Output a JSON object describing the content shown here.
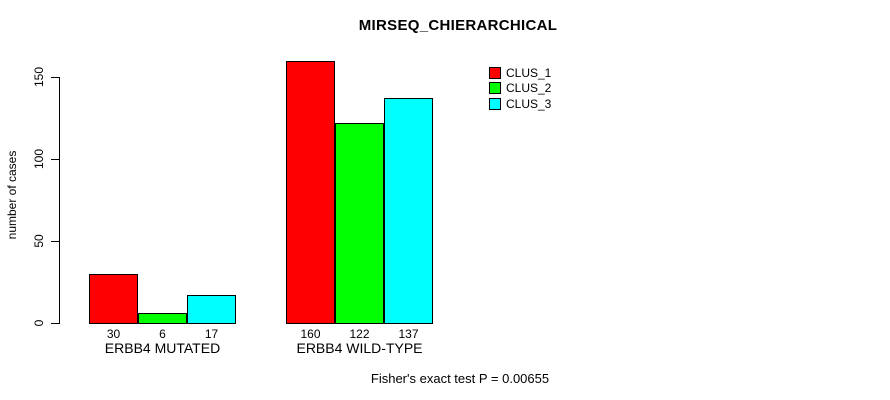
{
  "title": "MIRSEQ_CHIERARCHICAL",
  "footer": "Fisher's exact test P = 0.00655",
  "y_axis": {
    "label": "number of cases",
    "ticks": [
      0,
      50,
      100,
      150
    ]
  },
  "legend": {
    "items": [
      {
        "label": "CLUS_1",
        "color": "#ff0000"
      },
      {
        "label": "CLUS_2",
        "color": "#00ff00"
      },
      {
        "label": "CLUS_3",
        "color": "#00ffff"
      }
    ]
  },
  "chart_data": {
    "type": "bar",
    "grouped": true,
    "categories": [
      "ERBB4 MUTATED",
      "ERBB4 WILD-TYPE"
    ],
    "series": [
      {
        "name": "CLUS_1",
        "color": "#ff0000",
        "values": [
          30,
          160
        ]
      },
      {
        "name": "CLUS_2",
        "color": "#00ff00",
        "values": [
          6,
          122
        ]
      },
      {
        "name": "CLUS_3",
        "color": "#00ffff",
        "values": [
          17,
          137
        ]
      }
    ],
    "title": "MIRSEQ_CHIERARCHICAL",
    "xlabel": "",
    "ylabel": "number of cases",
    "ylim": [
      0,
      160
    ],
    "y_ticks": [
      0,
      50,
      100,
      150
    ],
    "show_bar_values": true,
    "bar_border_color": "#000000",
    "legend_position": "top-right",
    "legend_box": false,
    "grid": false,
    "annotation": "Fisher's exact test P = 0.00655"
  }
}
